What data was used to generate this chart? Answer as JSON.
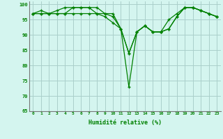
{
  "x": [
    0,
    1,
    2,
    3,
    4,
    5,
    6,
    7,
    8,
    9,
    10,
    11,
    12,
    13,
    14,
    15,
    16,
    17,
    18,
    19,
    20,
    21,
    22,
    23
  ],
  "line1": [
    97,
    98,
    97,
    97,
    97,
    99,
    99,
    99,
    99,
    97,
    97,
    92,
    84,
    91,
    93,
    91,
    91,
    92,
    96,
    99,
    99,
    98,
    97,
    96
  ],
  "line2": [
    97,
    97,
    97,
    97,
    97,
    97,
    97,
    97,
    97,
    96,
    94,
    92,
    73,
    91,
    93,
    91,
    91,
    92,
    96,
    99,
    99,
    98,
    97,
    96
  ],
  "line3": [
    97,
    97,
    97,
    98,
    99,
    99,
    99,
    99,
    97,
    97,
    96,
    92,
    84,
    91,
    93,
    91,
    91,
    95,
    97,
    99,
    99,
    98,
    97,
    96
  ],
  "ylim": [
    65,
    101
  ],
  "yticks": [
    65,
    70,
    75,
    80,
    85,
    90,
    95,
    100
  ],
  "xlabel": "Humidité relative (%)",
  "line_color": "#008000",
  "bg_color": "#d4f5ef",
  "grid_color": "#aacfca"
}
